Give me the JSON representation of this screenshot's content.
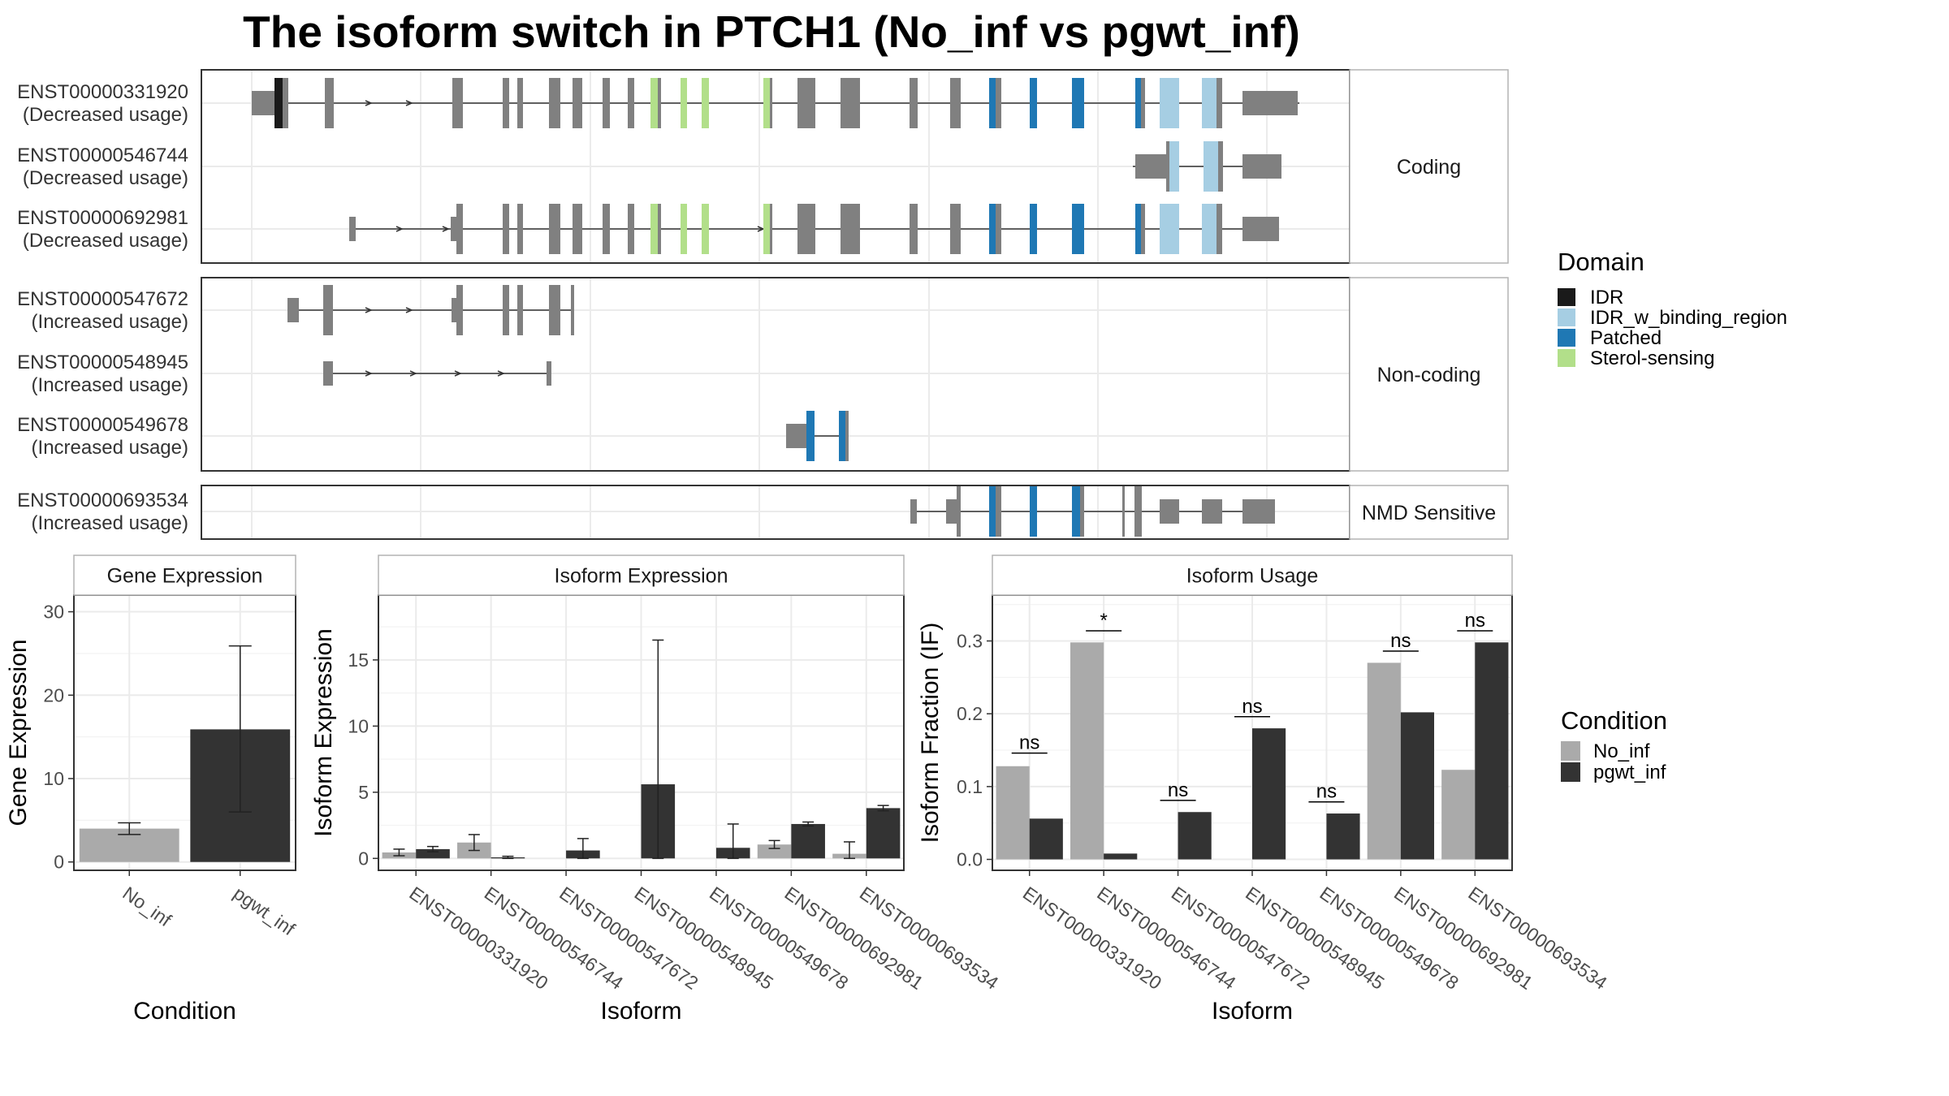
{
  "title": "The isoform switch in PTCH1 (No_inf vs pgwt_inf)",
  "structure_panels": [
    {
      "label": "Coding",
      "isoforms": [
        {
          "id": "ENST00000331920",
          "usage": "(Decreased usage)"
        },
        {
          "id": "ENST00000546744",
          "usage": "(Decreased usage)"
        },
        {
          "id": "ENST00000692981",
          "usage": "(Decreased usage)"
        }
      ]
    },
    {
      "label": "Non-coding",
      "isoforms": [
        {
          "id": "ENST00000547672",
          "usage": "(Increased usage)"
        },
        {
          "id": "ENST00000548945",
          "usage": "(Increased usage)"
        },
        {
          "id": "ENST00000549678",
          "usage": "(Increased usage)"
        }
      ]
    },
    {
      "label": "NMD Sensitive",
      "isoforms": [
        {
          "id": "ENST00000693534",
          "usage": "(Increased usage)"
        }
      ]
    }
  ],
  "domain_legend": {
    "title": "Domain",
    "items": [
      {
        "name": "IDR",
        "color": "#1a1a1a"
      },
      {
        "name": "IDR_w_binding_region",
        "color": "#a6cee3"
      },
      {
        "name": "Patched",
        "color": "#1f78b4"
      },
      {
        "name": "Sterol-sensing",
        "color": "#b2df8a"
      }
    ]
  },
  "condition_legend": {
    "title": "Condition",
    "items": [
      {
        "name": "No_inf",
        "color": "#aaaaaa"
      },
      {
        "name": "pgwt_inf",
        "color": "#333333"
      }
    ]
  },
  "chart_data": [
    {
      "type": "bar",
      "title": "Gene Expression",
      "categories": [
        "No_inf",
        "pgwt_inf"
      ],
      "values": [
        4.0,
        15.9
      ],
      "error_low": [
        3.3,
        6.0
      ],
      "error_high": [
        4.7,
        25.9
      ],
      "xlabel": "Condition",
      "ylabel": "Gene Expression",
      "ylim": [
        -1,
        32
      ],
      "yticks": [
        0,
        10,
        20,
        30
      ]
    },
    {
      "type": "bar",
      "title": "Isoform Expression",
      "categories": [
        "ENST00000331920",
        "ENST00000546744",
        "ENST00000547672",
        "ENST00000548945",
        "ENST00000549678",
        "ENST00000692981",
        "ENST00000693534"
      ],
      "series": [
        {
          "name": "No_inf",
          "values": [
            0.45,
            1.2,
            0.0,
            0.0,
            0.0,
            1.05,
            0.35
          ],
          "error_low": [
            0.2,
            0.6,
            0.0,
            0.0,
            0.0,
            0.75,
            0.0
          ],
          "error_high": [
            0.7,
            1.8,
            0.0,
            0.0,
            0.0,
            1.35,
            1.25
          ]
        },
        {
          "name": "pgwt_inf",
          "values": [
            0.7,
            0.08,
            0.6,
            5.6,
            0.8,
            2.6,
            3.8
          ],
          "error_low": [
            0.5,
            0.0,
            0.0,
            0.0,
            0.0,
            2.45,
            3.6
          ],
          "error_high": [
            0.9,
            0.16,
            1.5,
            16.5,
            2.6,
            2.75,
            4.0
          ]
        }
      ],
      "xlabel": "Isoform",
      "ylabel": "Isoform Expression",
      "ylim": [
        -0.9,
        19.9
      ],
      "yticks": [
        0,
        5,
        10,
        15
      ]
    },
    {
      "type": "bar",
      "title": "Isoform Usage",
      "categories": [
        "ENST00000331920",
        "ENST00000546744",
        "ENST00000547672",
        "ENST00000548945",
        "ENST00000549678",
        "ENST00000692981",
        "ENST00000693534"
      ],
      "series": [
        {
          "name": "No_inf",
          "values": [
            0.128,
            0.298,
            0.0,
            0.0,
            0.0,
            0.27,
            0.123
          ]
        },
        {
          "name": "pgwt_inf",
          "values": [
            0.056,
            0.008,
            0.065,
            0.18,
            0.063,
            0.202,
            0.298
          ]
        }
      ],
      "significance": [
        "ns",
        "*",
        "ns",
        "ns",
        "ns",
        "ns",
        "ns"
      ],
      "significance_y": [
        0.146,
        0.314,
        0.081,
        0.196,
        0.079,
        0.286,
        0.314
      ],
      "xlabel": "Isoform",
      "ylabel": "Isoform Fraction (IF)",
      "ylim": [
        -0.015,
        0.363
      ],
      "yticks": [
        0.0,
        0.1,
        0.2,
        0.3
      ],
      "ytick_labels": [
        "0.0",
        "0.1",
        "0.2",
        "0.3"
      ]
    }
  ]
}
